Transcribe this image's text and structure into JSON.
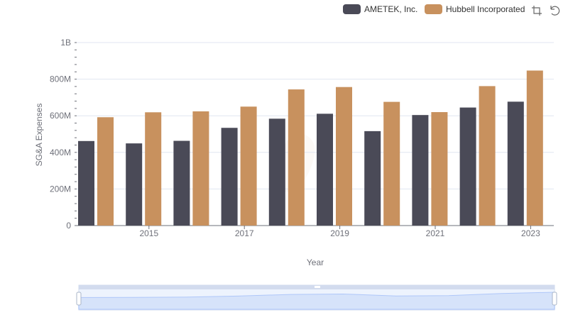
{
  "chart_data": {
    "type": "bar",
    "title": "",
    "xlabel": "Year",
    "ylabel": "SG&A Expenses",
    "x_tick_labels": [
      "2015",
      "2017",
      "2019",
      "2021",
      "2023"
    ],
    "categories": [
      "2014",
      "2015",
      "2016",
      "2017",
      "2018",
      "2019",
      "2020",
      "2021",
      "2022",
      "2023"
    ],
    "y_ticks": [
      {
        "value": 0,
        "label": "0"
      },
      {
        "value": 200000000,
        "label": "200M"
      },
      {
        "value": 400000000,
        "label": "400M"
      },
      {
        "value": 600000000,
        "label": "600M"
      },
      {
        "value": 800000000,
        "label": "800M"
      },
      {
        "value": 1000000000,
        "label": "1B"
      }
    ],
    "ylim": [
      0,
      1000000000
    ],
    "grid": true,
    "legend_position": "top-right",
    "series": [
      {
        "name": "AMETEK, Inc.",
        "color": "#4a4a57",
        "values": [
          462000000,
          449000000,
          463000000,
          534000000,
          584000000,
          611000000,
          516000000,
          604000000,
          645000000,
          677000000
        ]
      },
      {
        "name": "Hubbell Incorporated",
        "color": "#c8915e",
        "values": [
          592000000,
          619000000,
          624000000,
          650000000,
          744000000,
          757000000,
          676000000,
          620000000,
          762000000,
          847000000
        ]
      }
    ]
  },
  "toolbox": {
    "icons": [
      "zoom-icon",
      "restore-icon"
    ]
  },
  "datazoom": {
    "range_percent": [
      0,
      100
    ],
    "accent": "#8fb0f7"
  }
}
